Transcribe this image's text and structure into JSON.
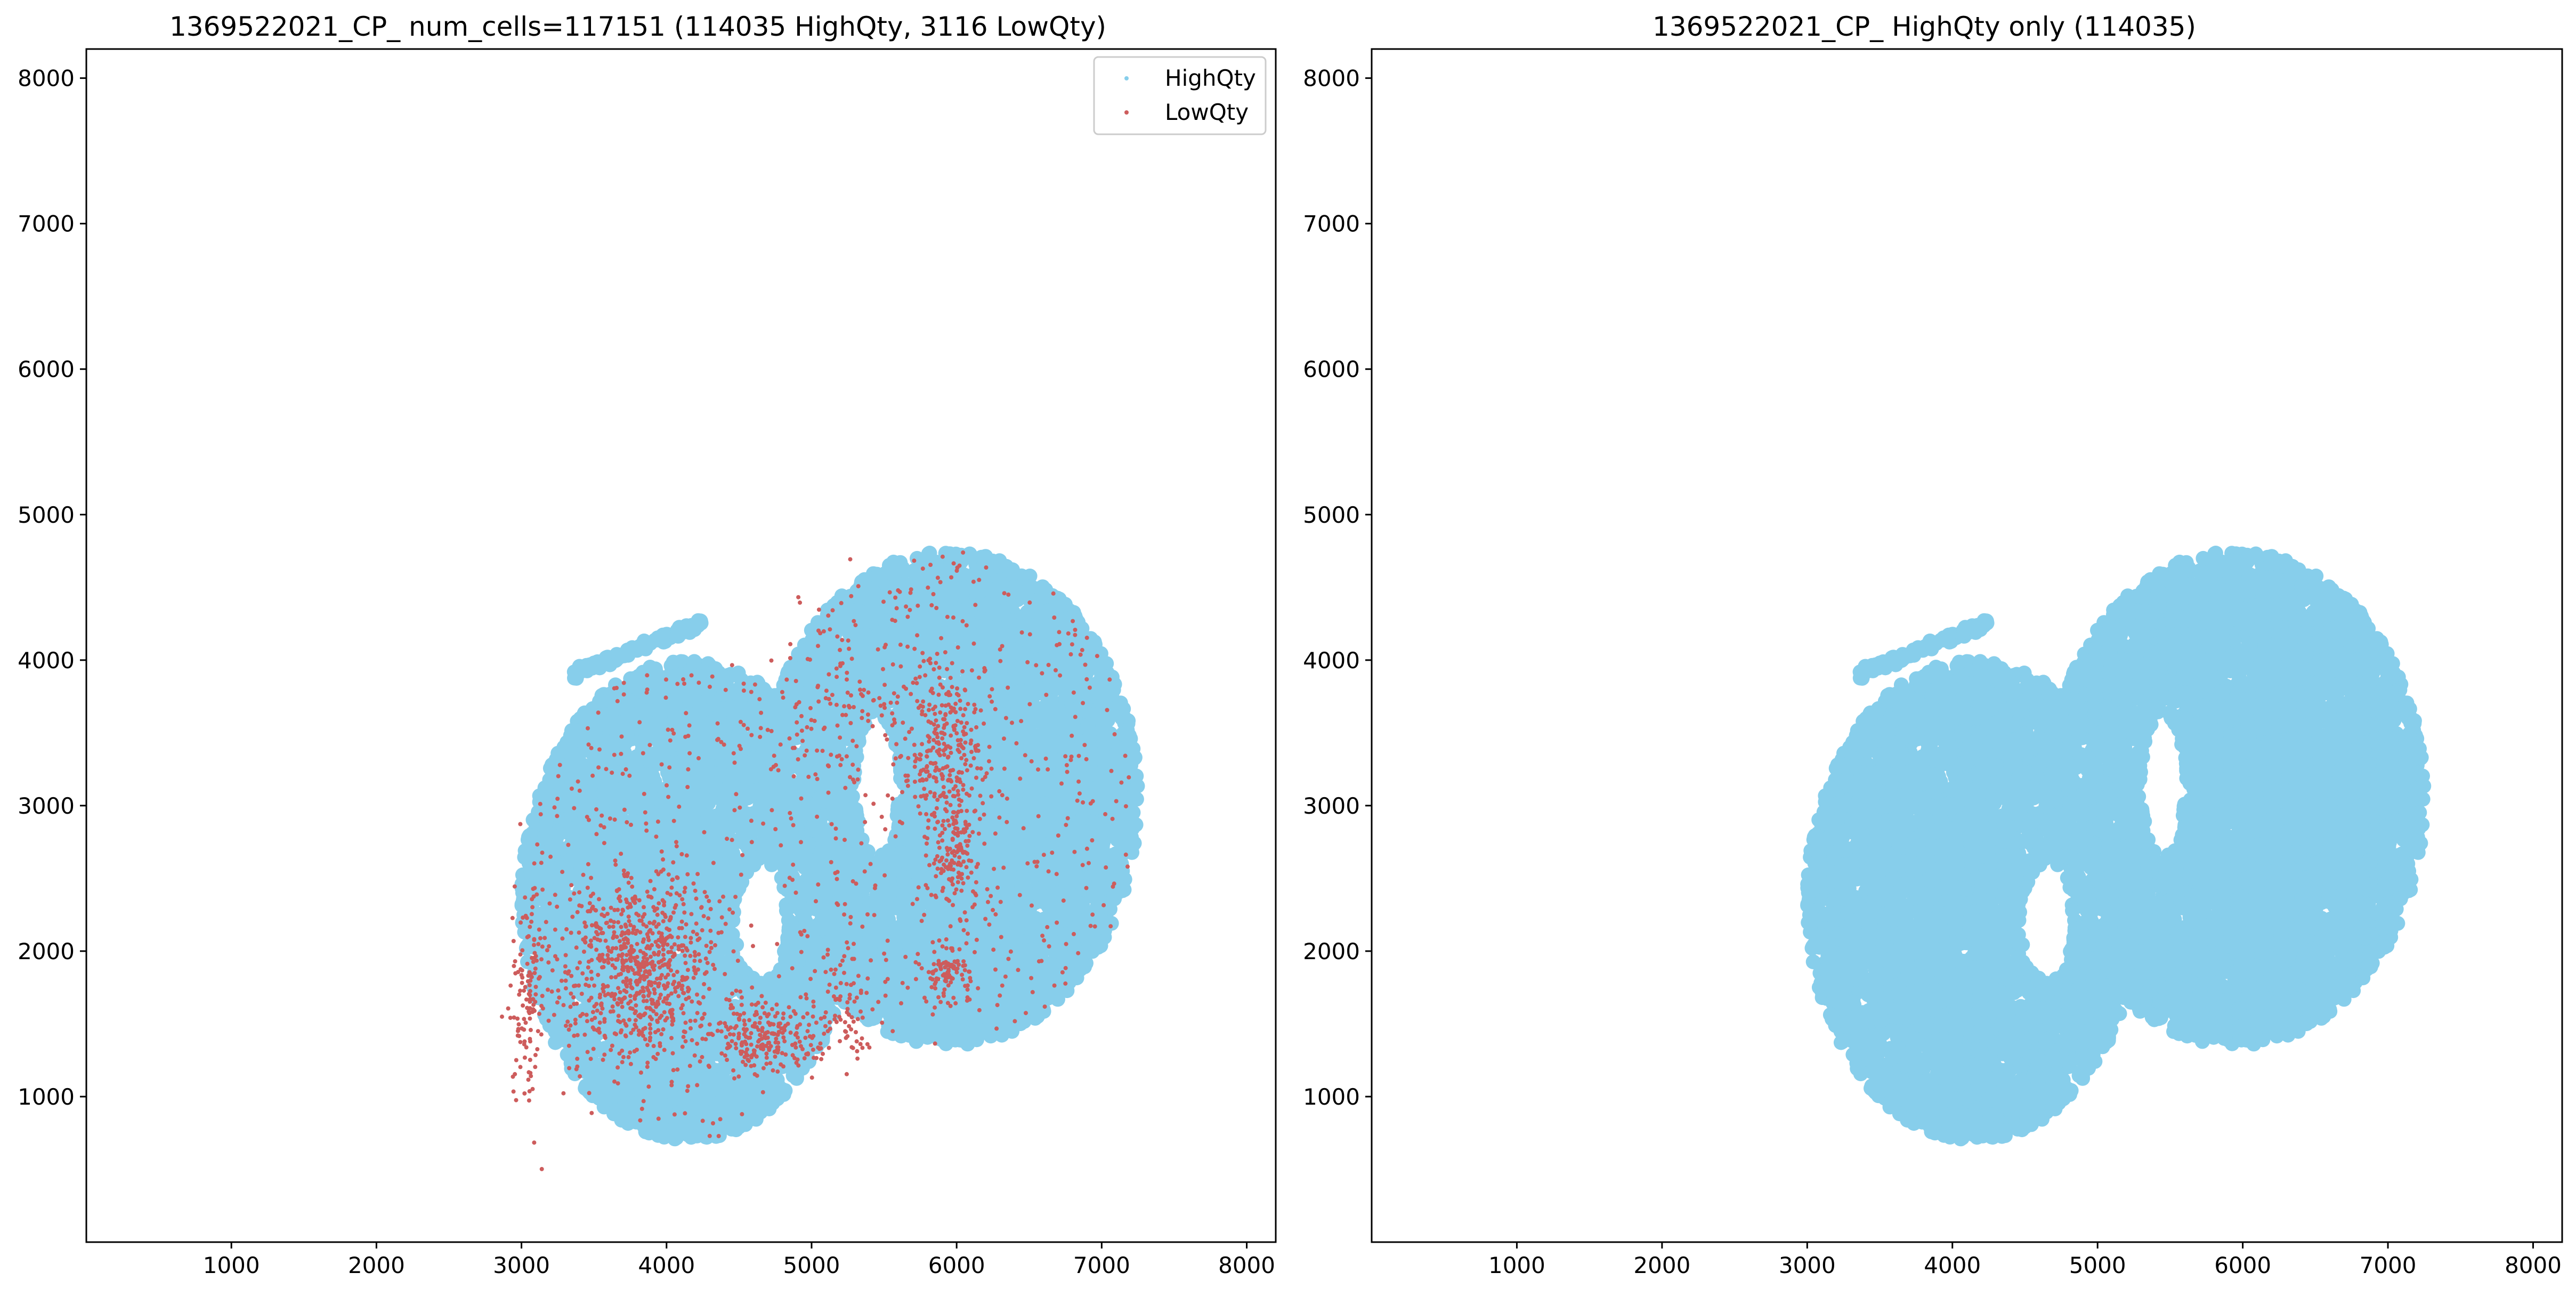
{
  "colors": {
    "high": "#87CEEB",
    "low": "#CD5C5C",
    "axis": "#000000"
  },
  "chart_data": [
    {
      "type": "scatter",
      "title": "1369522021_CP_ num_cells=117151 (114035 HighQty, 3116 LowQty)",
      "xlim": [
        0,
        8200
      ],
      "ylim": [
        0,
        8200
      ],
      "xticks": [
        1000,
        2000,
        3000,
        4000,
        5000,
        6000,
        7000,
        8000
      ],
      "yticks": [
        1000,
        2000,
        3000,
        4000,
        5000,
        6000,
        7000,
        8000
      ],
      "legend": {
        "position": "top-right",
        "entries": [
          "HighQty",
          "LowQty"
        ]
      },
      "series": [
        {
          "name": "HighQty",
          "color": "#87CEEB",
          "count": 114035,
          "region": {
            "lobes": [
              {
                "cx": 4150,
                "cy": 2350,
                "rx": 1150,
                "ry": 1650
              },
              {
                "cx": 5950,
                "cy": 3050,
                "rx": 1300,
                "ry": 1700
              }
            ],
            "holes": [
              {
                "cx": 4650,
                "cy": 2200,
                "rx": 180,
                "ry": 400
              },
              {
                "cx": 5450,
                "cy": 3150,
                "rx": 150,
                "ry": 480
              }
            ]
          },
          "visible_points": 9000
        },
        {
          "name": "LowQty",
          "color": "#CD5C5C",
          "count": 3116,
          "clusters": [
            {
              "cx": 3800,
              "cy": 1900,
              "sx": 250,
              "sy": 320,
              "n": 700
            },
            {
              "cx": 4650,
              "cy": 1400,
              "sx": 180,
              "sy": 120,
              "n": 200
            },
            {
              "cx": 5900,
              "cy": 3350,
              "sx": 140,
              "sy": 280,
              "n": 250
            },
            {
              "cx": 6000,
              "cy": 2700,
              "sx": 80,
              "sy": 220,
              "n": 140
            },
            {
              "cx": 5950,
              "cy": 1850,
              "sx": 90,
              "sy": 90,
              "n": 80
            },
            {
              "cx": 3050,
              "cy": 1700,
              "sx": 60,
              "sy": 400,
              "n": 120
            },
            {
              "cx": 5200,
              "cy": 1650,
              "sx": 120,
              "sy": 200,
              "n": 90
            },
            {
              "cx": 5300,
              "cy": 3700,
              "sx": 400,
              "sy": 400,
              "n": 120
            }
          ],
          "visible_points": 2400
        }
      ]
    },
    {
      "type": "scatter",
      "title": "1369522021_CP_ HighQty only (114035)",
      "xlim": [
        0,
        8200
      ],
      "ylim": [
        0,
        8200
      ],
      "xticks": [
        1000,
        2000,
        3000,
        4000,
        5000,
        6000,
        7000,
        8000
      ],
      "yticks": [
        1000,
        2000,
        3000,
        4000,
        5000,
        6000,
        7000,
        8000
      ],
      "series": [
        {
          "name": "HighQty",
          "color": "#87CEEB",
          "count": 114035
        }
      ]
    }
  ]
}
